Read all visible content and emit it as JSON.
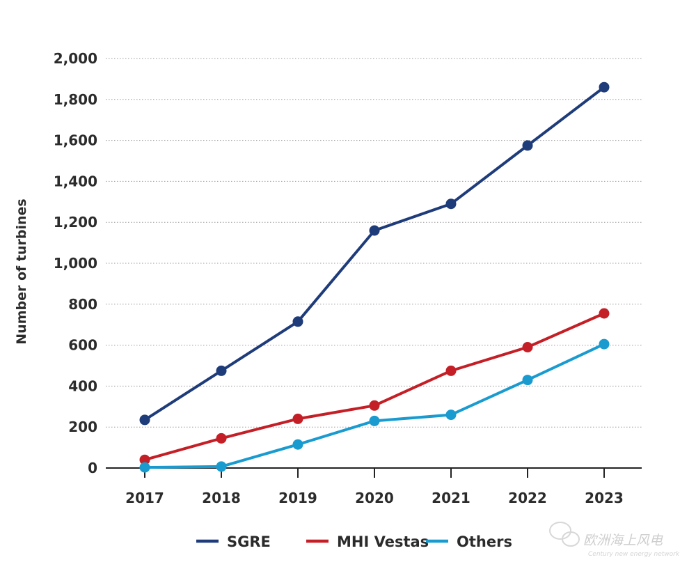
{
  "chart_data": {
    "type": "line",
    "title": "",
    "xlabel": "",
    "ylabel": "Number of turbines",
    "categories": [
      "2017",
      "2018",
      "2019",
      "2020",
      "2021",
      "2022",
      "2023"
    ],
    "yticks": [
      "0",
      "200",
      "400",
      "600",
      "800",
      "1,000",
      "1,200",
      "1,400",
      "1,600",
      "1,800",
      "2,000"
    ],
    "ylim": [
      0,
      2000
    ],
    "grid": "horizontal dotted",
    "legend_position": "bottom",
    "series": [
      {
        "name": "SGRE",
        "color": "#1e3b7a",
        "values": [
          235,
          475,
          715,
          1160,
          1290,
          1575,
          1860
        ]
      },
      {
        "name": "MHI Vestas",
        "color": "#c41f26",
        "values": [
          40,
          145,
          240,
          305,
          475,
          590,
          755
        ]
      },
      {
        "name": "Others",
        "color": "#1a9bd0",
        "values": [
          3,
          7,
          115,
          230,
          260,
          430,
          605
        ]
      }
    ]
  },
  "watermark": {
    "text": "欧洲海上风电",
    "subtext": "Century new energy network",
    "icon": "wechat-logo-icon"
  }
}
